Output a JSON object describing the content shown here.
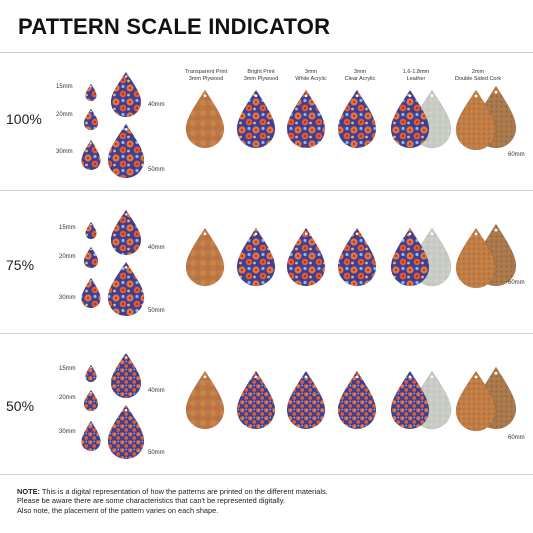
{
  "title": "PATTERN SCALE INDICATOR",
  "sections": [
    {
      "label": "100%"
    },
    {
      "label": "75%"
    },
    {
      "label": "50%"
    }
  ],
  "sizes": {
    "s15": "15mm",
    "s20": "20mm",
    "s30": "30mm",
    "s40": "40mm",
    "s50": "50mm",
    "s60": "60mm"
  },
  "materials": [
    {
      "line1": "Transparent Print",
      "line2": "3mm Plywood"
    },
    {
      "line1": "Bright Print",
      "line2": "3mm Plywood"
    },
    {
      "line1": "3mm",
      "line2": "White Acrylic"
    },
    {
      "line1": "3mm",
      "line2": "Clear Acrylic"
    },
    {
      "line1": "1.6-1.8mm",
      "line2": "Leather"
    },
    {
      "line1": "2mm",
      "line2": "Double Sided Cork"
    }
  ],
  "note": {
    "label": "NOTE:",
    "line1": " This is a digital representation of how the patterns are printed on the different materials.",
    "line2": "Please be aware there are some characteristics that can't be represented digitally.",
    "line3": "Also note, the placement of the pattern varies on each shape."
  },
  "colors": {
    "accent": "#e8743b",
    "pattern_blue": "#3a3f9a",
    "wood": "#b87a45",
    "leather": "#c9ccc4",
    "cork": "#a8784a"
  }
}
